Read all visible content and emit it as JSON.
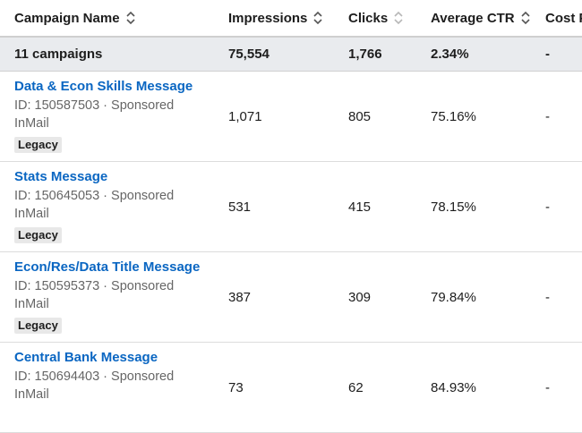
{
  "table": {
    "columns": [
      "Campaign Name",
      "Impressions",
      "Clicks",
      "Average CTR",
      "Cost P"
    ],
    "summary": [
      "11 campaigns",
      "75,554",
      "1,766",
      "2.34%",
      "-"
    ],
    "rows": [
      {
        "name": "Data & Econ Skills Message",
        "id": "ID: 150587503 · Sponsored InMail",
        "badge": "Legacy",
        "cells": [
          "1,071",
          "805",
          "75.16%",
          "-"
        ]
      },
      {
        "name": "Stats Message",
        "id": "ID: 150645053 · Sponsored InMail",
        "badge": "Legacy",
        "cells": [
          "531",
          "415",
          "78.15%",
          "-"
        ]
      },
      {
        "name": "Econ/Res/Data Title Message",
        "id": "ID: 150595373 · Sponsored InMail",
        "badge": "Legacy",
        "cells": [
          "387",
          "309",
          "79.84%",
          "-"
        ]
      },
      {
        "name": "Central Bank Message",
        "id": "ID: 150694403 · Sponsored InMail",
        "cells": [
          "73",
          "62",
          "84.93%",
          "-"
        ]
      }
    ]
  }
}
